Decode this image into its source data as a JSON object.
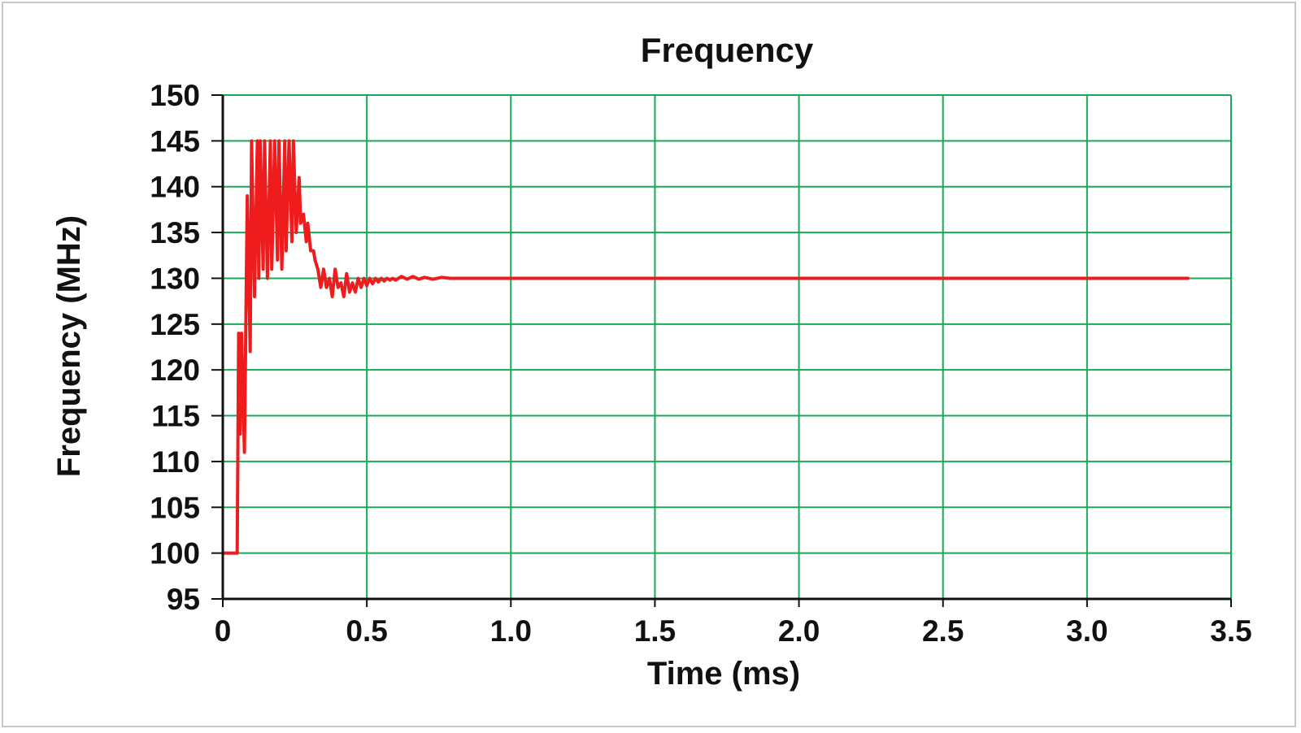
{
  "chart_data": {
    "type": "line",
    "title": "Frequency",
    "xlabel": "Time (ms)",
    "ylabel": "Frequency (MHz)",
    "xlim": [
      0,
      3.5
    ],
    "ylim": [
      95,
      150
    ],
    "x_ticks": [
      "0",
      "0.5",
      "1.0",
      "1.5",
      "2.0",
      "2.5",
      "3.0",
      "3.5"
    ],
    "y_ticks": [
      "150",
      "145",
      "140",
      "135",
      "130",
      "125",
      "120",
      "115",
      "110",
      "105",
      "100",
      "95"
    ],
    "grid": true,
    "legend": "none",
    "colors": {
      "series": "#ee1c1c",
      "grid": "#19a85a",
      "axis": "#111111"
    },
    "series": [
      {
        "x": [
          0,
          0.04,
          0.05,
          0.055,
          0.06,
          0.065,
          0.075,
          0.085,
          0.095,
          0.1,
          0.11,
          0.12,
          0.125,
          0.13,
          0.14,
          0.145,
          0.155,
          0.165,
          0.17,
          0.18,
          0.19,
          0.195,
          0.205,
          0.215,
          0.22,
          0.23,
          0.24,
          0.245,
          0.255,
          0.265,
          0.27,
          0.28,
          0.29,
          0.295,
          0.305,
          0.315,
          0.32,
          0.33,
          0.34,
          0.35,
          0.36,
          0.37,
          0.38,
          0.39,
          0.4,
          0.41,
          0.42,
          0.43,
          0.44,
          0.45,
          0.46,
          0.47,
          0.48,
          0.49,
          0.5,
          0.51,
          0.52,
          0.53,
          0.54,
          0.55,
          0.56,
          0.57,
          0.58,
          0.59,
          0.6,
          0.62,
          0.64,
          0.66,
          0.68,
          0.7,
          0.73,
          0.76,
          0.79,
          0.82,
          0.85,
          0.88,
          0.91,
          0.95,
          1.0,
          1.5,
          2.0,
          2.5,
          3.0,
          3.35
        ],
        "y": [
          100,
          100,
          100,
          124,
          113,
          124,
          111,
          139,
          122,
          145,
          128,
          145,
          130,
          145,
          131,
          145,
          130,
          145,
          131,
          145,
          132,
          145,
          131,
          145,
          133,
          145,
          134,
          145,
          135,
          141,
          136,
          137,
          134,
          136,
          133,
          133,
          132,
          131,
          129,
          131,
          129,
          130,
          128,
          131,
          129,
          129.5,
          128,
          130.5,
          128.5,
          129.5,
          128.5,
          130,
          129,
          130,
          129.2,
          130,
          129.4,
          130,
          129.6,
          130,
          129.7,
          130,
          129.8,
          130,
          129.8,
          130.2,
          129.9,
          130.2,
          129.9,
          130.1,
          129.9,
          130.1,
          130,
          130,
          130,
          130,
          130,
          130,
          130,
          130,
          130,
          130,
          130,
          130
        ]
      }
    ]
  }
}
